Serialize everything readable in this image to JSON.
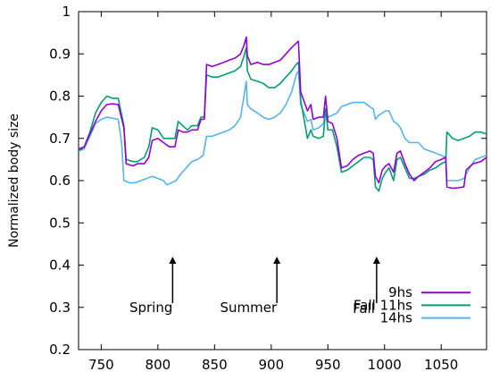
{
  "chart_data": {
    "type": "line",
    "title": "",
    "xlabel": "",
    "ylabel": "Normalized body size",
    "xlim": [
      730,
      1090
    ],
    "ylim": [
      0.2,
      1.0
    ],
    "xticks": [
      750,
      800,
      850,
      900,
      950,
      1000,
      1050
    ],
    "yticks": [
      0.2,
      0.3,
      0.4,
      0.5,
      0.6,
      0.7,
      0.8,
      0.9,
      1
    ],
    "grid": false,
    "legend_position": "bottom-right",
    "series": [
      {
        "name": "9hs",
        "color": "#9400d3",
        "points": [
          [
            730,
            0.675
          ],
          [
            735,
            0.68
          ],
          [
            740,
            0.71
          ],
          [
            745,
            0.74
          ],
          [
            750,
            0.765
          ],
          [
            755,
            0.78
          ],
          [
            760,
            0.782
          ],
          [
            765,
            0.78
          ],
          [
            770,
            0.725
          ],
          [
            772,
            0.64
          ],
          [
            778,
            0.635
          ],
          [
            782,
            0.64
          ],
          [
            788,
            0.64
          ],
          [
            792,
            0.655
          ],
          [
            795,
            0.695
          ],
          [
            800,
            0.7
          ],
          [
            805,
            0.69
          ],
          [
            810,
            0.68
          ],
          [
            815,
            0.68
          ],
          [
            818,
            0.72
          ],
          [
            822,
            0.715
          ],
          [
            826,
            0.715
          ],
          [
            830,
            0.72
          ],
          [
            835,
            0.72
          ],
          [
            838,
            0.745
          ],
          [
            841,
            0.745
          ],
          [
            843,
            0.875
          ],
          [
            848,
            0.87
          ],
          [
            853,
            0.875
          ],
          [
            858,
            0.88
          ],
          [
            863,
            0.885
          ],
          [
            868,
            0.89
          ],
          [
            873,
            0.9
          ],
          [
            876,
            0.92
          ],
          [
            878,
            0.94
          ],
          [
            879,
            0.895
          ],
          [
            882,
            0.875
          ],
          [
            888,
            0.88
          ],
          [
            893,
            0.875
          ],
          [
            898,
            0.875
          ],
          [
            903,
            0.88
          ],
          [
            908,
            0.885
          ],
          [
            913,
            0.9
          ],
          [
            918,
            0.915
          ],
          [
            922,
            0.925
          ],
          [
            924,
            0.93
          ],
          [
            926,
            0.81
          ],
          [
            932,
            0.765
          ],
          [
            935,
            0.78
          ],
          [
            937,
            0.745
          ],
          [
            942,
            0.75
          ],
          [
            946,
            0.75
          ],
          [
            948,
            0.8
          ],
          [
            950,
            0.74
          ],
          [
            954,
            0.735
          ],
          [
            958,
            0.7
          ],
          [
            962,
            0.63
          ],
          [
            967,
            0.635
          ],
          [
            972,
            0.65
          ],
          [
            977,
            0.66
          ],
          [
            982,
            0.665
          ],
          [
            987,
            0.67
          ],
          [
            990,
            0.665
          ],
          [
            992,
            0.61
          ],
          [
            995,
            0.595
          ],
          [
            998,
            0.625
          ],
          [
            1001,
            0.635
          ],
          [
            1004,
            0.64
          ],
          [
            1008,
            0.62
          ],
          [
            1011,
            0.665
          ],
          [
            1014,
            0.67
          ],
          [
            1018,
            0.64
          ],
          [
            1022,
            0.615
          ],
          [
            1026,
            0.6
          ],
          [
            1030,
            0.61
          ],
          [
            1035,
            0.62
          ],
          [
            1040,
            0.63
          ],
          [
            1045,
            0.645
          ],
          [
            1050,
            0.65
          ],
          [
            1054,
            0.655
          ],
          [
            1055,
            0.585
          ],
          [
            1060,
            0.582
          ],
          [
            1065,
            0.583
          ],
          [
            1070,
            0.585
          ],
          [
            1072,
            0.625
          ],
          [
            1078,
            0.64
          ],
          [
            1085,
            0.645
          ],
          [
            1090,
            0.655
          ]
        ]
      },
      {
        "name": "Fall 11hs",
        "color": "#009e73",
        "points": [
          [
            730,
            0.67
          ],
          [
            735,
            0.68
          ],
          [
            740,
            0.715
          ],
          [
            745,
            0.76
          ],
          [
            750,
            0.785
          ],
          [
            755,
            0.8
          ],
          [
            760,
            0.795
          ],
          [
            765,
            0.795
          ],
          [
            770,
            0.73
          ],
          [
            772,
            0.65
          ],
          [
            778,
            0.645
          ],
          [
            782,
            0.645
          ],
          [
            788,
            0.655
          ],
          [
            792,
            0.68
          ],
          [
            795,
            0.725
          ],
          [
            800,
            0.72
          ],
          [
            805,
            0.7
          ],
          [
            810,
            0.7
          ],
          [
            815,
            0.7
          ],
          [
            818,
            0.74
          ],
          [
            822,
            0.73
          ],
          [
            826,
            0.72
          ],
          [
            830,
            0.73
          ],
          [
            835,
            0.73
          ],
          [
            838,
            0.75
          ],
          [
            841,
            0.75
          ],
          [
            843,
            0.85
          ],
          [
            848,
            0.845
          ],
          [
            853,
            0.845
          ],
          [
            858,
            0.85
          ],
          [
            863,
            0.855
          ],
          [
            868,
            0.86
          ],
          [
            873,
            0.87
          ],
          [
            876,
            0.895
          ],
          [
            878,
            0.915
          ],
          [
            879,
            0.86
          ],
          [
            882,
            0.84
          ],
          [
            888,
            0.835
          ],
          [
            893,
            0.83
          ],
          [
            898,
            0.82
          ],
          [
            903,
            0.82
          ],
          [
            908,
            0.83
          ],
          [
            913,
            0.845
          ],
          [
            918,
            0.86
          ],
          [
            922,
            0.875
          ],
          [
            924,
            0.88
          ],
          [
            926,
            0.79
          ],
          [
            932,
            0.7
          ],
          [
            935,
            0.72
          ],
          [
            937,
            0.705
          ],
          [
            942,
            0.7
          ],
          [
            946,
            0.705
          ],
          [
            948,
            0.77
          ],
          [
            950,
            0.72
          ],
          [
            954,
            0.72
          ],
          [
            958,
            0.68
          ],
          [
            962,
            0.62
          ],
          [
            967,
            0.625
          ],
          [
            972,
            0.635
          ],
          [
            977,
            0.645
          ],
          [
            982,
            0.655
          ],
          [
            987,
            0.655
          ],
          [
            990,
            0.65
          ],
          [
            992,
            0.585
          ],
          [
            995,
            0.575
          ],
          [
            998,
            0.605
          ],
          [
            1001,
            0.62
          ],
          [
            1004,
            0.63
          ],
          [
            1008,
            0.6
          ],
          [
            1011,
            0.65
          ],
          [
            1014,
            0.655
          ],
          [
            1018,
            0.63
          ],
          [
            1022,
            0.605
          ],
          [
            1026,
            0.605
          ],
          [
            1030,
            0.61
          ],
          [
            1035,
            0.615
          ],
          [
            1040,
            0.625
          ],
          [
            1045,
            0.63
          ],
          [
            1050,
            0.64
          ],
          [
            1054,
            0.645
          ],
          [
            1055,
            0.715
          ],
          [
            1060,
            0.7
          ],
          [
            1065,
            0.695
          ],
          [
            1070,
            0.7
          ],
          [
            1075,
            0.705
          ],
          [
            1080,
            0.715
          ],
          [
            1085,
            0.715
          ],
          [
            1090,
            0.71
          ]
        ]
      },
      {
        "name": "14hs",
        "color": "#56b4e9",
        "points": [
          [
            730,
            0.67
          ],
          [
            735,
            0.675
          ],
          [
            740,
            0.705
          ],
          [
            745,
            0.735
          ],
          [
            750,
            0.745
          ],
          [
            755,
            0.75
          ],
          [
            760,
            0.748
          ],
          [
            765,
            0.745
          ],
          [
            768,
            0.69
          ],
          [
            770,
            0.6
          ],
          [
            775,
            0.595
          ],
          [
            780,
            0.595
          ],
          [
            785,
            0.6
          ],
          [
            790,
            0.605
          ],
          [
            795,
            0.61
          ],
          [
            800,
            0.605
          ],
          [
            805,
            0.6
          ],
          [
            808,
            0.59
          ],
          [
            812,
            0.595
          ],
          [
            816,
            0.6
          ],
          [
            820,
            0.615
          ],
          [
            825,
            0.63
          ],
          [
            830,
            0.645
          ],
          [
            835,
            0.65
          ],
          [
            840,
            0.66
          ],
          [
            843,
            0.705
          ],
          [
            848,
            0.705
          ],
          [
            853,
            0.71
          ],
          [
            858,
            0.715
          ],
          [
            863,
            0.72
          ],
          [
            868,
            0.73
          ],
          [
            873,
            0.75
          ],
          [
            876,
            0.8
          ],
          [
            878,
            0.835
          ],
          [
            879,
            0.78
          ],
          [
            882,
            0.77
          ],
          [
            888,
            0.76
          ],
          [
            893,
            0.75
          ],
          [
            898,
            0.745
          ],
          [
            903,
            0.75
          ],
          [
            908,
            0.76
          ],
          [
            913,
            0.78
          ],
          [
            918,
            0.81
          ],
          [
            922,
            0.85
          ],
          [
            924,
            0.86
          ],
          [
            926,
            0.78
          ],
          [
            932,
            0.74
          ],
          [
            935,
            0.745
          ],
          [
            937,
            0.72
          ],
          [
            942,
            0.725
          ],
          [
            946,
            0.735
          ],
          [
            948,
            0.77
          ],
          [
            950,
            0.75
          ],
          [
            954,
            0.755
          ],
          [
            958,
            0.76
          ],
          [
            962,
            0.775
          ],
          [
            967,
            0.78
          ],
          [
            972,
            0.785
          ],
          [
            977,
            0.785
          ],
          [
            982,
            0.785
          ],
          [
            987,
            0.775
          ],
          [
            990,
            0.77
          ],
          [
            992,
            0.745
          ],
          [
            995,
            0.755
          ],
          [
            998,
            0.76
          ],
          [
            1001,
            0.765
          ],
          [
            1004,
            0.765
          ],
          [
            1008,
            0.74
          ],
          [
            1011,
            0.735
          ],
          [
            1014,
            0.725
          ],
          [
            1018,
            0.7
          ],
          [
            1022,
            0.69
          ],
          [
            1026,
            0.69
          ],
          [
            1030,
            0.69
          ],
          [
            1035,
            0.675
          ],
          [
            1040,
            0.67
          ],
          [
            1045,
            0.665
          ],
          [
            1050,
            0.66
          ],
          [
            1054,
            0.655
          ],
          [
            1055,
            0.6
          ],
          [
            1060,
            0.6
          ],
          [
            1065,
            0.6
          ],
          [
            1070,
            0.605
          ],
          [
            1075,
            0.63
          ],
          [
            1080,
            0.65
          ],
          [
            1085,
            0.655
          ],
          [
            1090,
            0.66
          ]
        ]
      }
    ],
    "annotations": [
      {
        "label": "Spring",
        "x": 813
      },
      {
        "label": "Summer",
        "x": 905
      },
      {
        "label": "Fall",
        "x": 993
      }
    ]
  }
}
